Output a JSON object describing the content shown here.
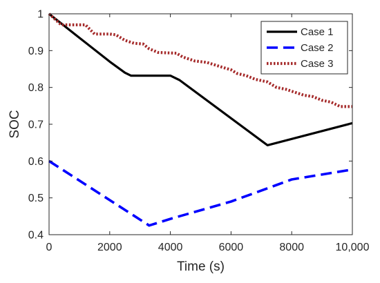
{
  "chart_data": {
    "type": "line",
    "xlabel": "Time (s)",
    "ylabel": "SOC",
    "xlim": [
      0,
      10000
    ],
    "ylim": [
      0.4,
      1.0
    ],
    "xticks": [
      0,
      2000,
      4000,
      6000,
      8000,
      10000
    ],
    "xtick_labels": [
      "0",
      "2000",
      "4000",
      "6000",
      "8000",
      "10,000"
    ],
    "yticks": [
      0.4,
      0.5,
      0.6,
      0.7,
      0.8,
      0.9,
      1.0
    ],
    "ytick_labels": [
      "0.4",
      "0.5",
      "0.6",
      "0.7",
      "0.8",
      "0.9",
      "1"
    ],
    "grid": false,
    "legend_position": "top-right",
    "series": [
      {
        "name": "Case 1",
        "color": "#000000",
        "style": "solid",
        "points": [
          [
            0,
            1.0
          ],
          [
            1000,
            0.935
          ],
          [
            2000,
            0.87
          ],
          [
            2500,
            0.84
          ],
          [
            2700,
            0.832
          ],
          [
            4000,
            0.832
          ],
          [
            4300,
            0.82
          ],
          [
            7200,
            0.643
          ],
          [
            7300,
            0.645
          ],
          [
            8000,
            0.66
          ],
          [
            10000,
            0.703
          ]
        ]
      },
      {
        "name": "Case 2",
        "color": "#0000ff",
        "style": "dashed",
        "points": [
          [
            0,
            0.6
          ],
          [
            3300,
            0.425
          ],
          [
            4000,
            0.443
          ],
          [
            6000,
            0.49
          ],
          [
            7500,
            0.535
          ],
          [
            8000,
            0.55
          ],
          [
            10000,
            0.577
          ]
        ]
      },
      {
        "name": "Case 3",
        "color": "#a52a2a",
        "style": "dotted",
        "points": [
          [
            0,
            1.0
          ],
          [
            400,
            0.97
          ],
          [
            1200,
            0.97
          ],
          [
            1500,
            0.945
          ],
          [
            2000,
            0.945
          ],
          [
            2200,
            0.943
          ],
          [
            2500,
            0.928
          ],
          [
            2800,
            0.92
          ],
          [
            3100,
            0.918
          ],
          [
            3300,
            0.905
          ],
          [
            3600,
            0.895
          ],
          [
            4200,
            0.893
          ],
          [
            4400,
            0.883
          ],
          [
            4800,
            0.872
          ],
          [
            5200,
            0.868
          ],
          [
            5700,
            0.855
          ],
          [
            6000,
            0.848
          ],
          [
            6200,
            0.838
          ],
          [
            6500,
            0.832
          ],
          [
            6800,
            0.822
          ],
          [
            7200,
            0.815
          ],
          [
            7500,
            0.8
          ],
          [
            7800,
            0.795
          ],
          [
            8100,
            0.787
          ],
          [
            8400,
            0.779
          ],
          [
            8700,
            0.775
          ],
          [
            9000,
            0.765
          ],
          [
            9300,
            0.76
          ],
          [
            9600,
            0.748
          ],
          [
            10000,
            0.748
          ]
        ]
      }
    ]
  }
}
